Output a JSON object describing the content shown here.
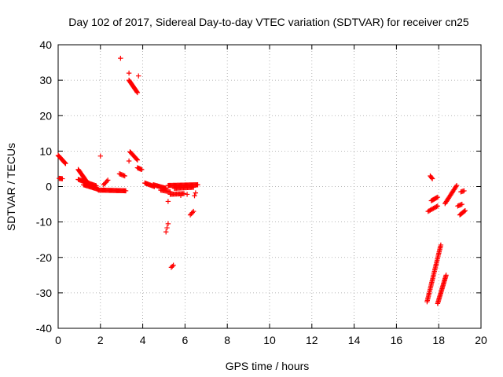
{
  "chart_data": {
    "type": "scatter",
    "title": "Day 102 of 2017, Sidereal Day-to-day VTEC variation (SDTVAR) for receiver cn25",
    "xlabel": "GPS time / hours",
    "ylabel": "SDTVAR / TECUs",
    "xlim": [
      0,
      20
    ],
    "ylim": [
      -40,
      40
    ],
    "xticks": [
      0,
      2,
      4,
      6,
      8,
      10,
      12,
      14,
      16,
      18,
      20
    ],
    "yticks": [
      -40,
      -30,
      -20,
      -10,
      0,
      10,
      20,
      30,
      40
    ],
    "grid": true,
    "marker": "+",
    "color": "#ff0000",
    "segments": [
      {
        "x0": 0.0,
        "y0": 8.8,
        "x1": 0.35,
        "y1": 6.5,
        "n": 14
      },
      {
        "x0": 0.05,
        "y0": 2.3,
        "x1": 0.2,
        "y1": 2.2,
        "n": 5
      },
      {
        "x0": 0.95,
        "y0": 4.8,
        "x1": 1.4,
        "y1": 1.0,
        "n": 16
      },
      {
        "x0": 0.95,
        "y0": 2.0,
        "x1": 1.8,
        "y1": 0.2,
        "n": 22
      },
      {
        "x0": 1.2,
        "y0": 0.5,
        "x1": 1.9,
        "y1": -0.8,
        "n": 18
      },
      {
        "x0": 1.9,
        "y0": -1.0,
        "x1": 3.2,
        "y1": -1.2,
        "n": 34
      },
      {
        "x0": 2.15,
        "y0": 0.5,
        "x1": 2.35,
        "y1": 1.8,
        "n": 5
      },
      {
        "x0": 2.9,
        "y0": 3.6,
        "x1": 3.15,
        "y1": 3.0,
        "n": 6
      },
      {
        "x0": 3.35,
        "y0": 30.0,
        "x1": 3.75,
        "y1": 26.5,
        "n": 16
      },
      {
        "x0": 3.4,
        "y0": 9.8,
        "x1": 3.75,
        "y1": 7.5,
        "n": 12
      },
      {
        "x0": 3.75,
        "y0": 5.3,
        "x1": 3.95,
        "y1": 4.8,
        "n": 6
      },
      {
        "x0": 4.1,
        "y0": 1.0,
        "x1": 4.55,
        "y1": 0.0,
        "n": 12
      },
      {
        "x0": 4.5,
        "y0": 0.5,
        "x1": 5.1,
        "y1": -0.5,
        "n": 16
      },
      {
        "x0": 4.85,
        "y0": -1.0,
        "x1": 5.3,
        "y1": -1.5,
        "n": 10
      },
      {
        "x0": 5.2,
        "y0": 0.3,
        "x1": 6.6,
        "y1": 0.5,
        "n": 36
      },
      {
        "x0": 5.5,
        "y0": -0.5,
        "x1": 6.4,
        "y1": -0.2,
        "n": 20
      },
      {
        "x0": 5.3,
        "y0": -2.2,
        "x1": 5.95,
        "y1": -2.0,
        "n": 14
      },
      {
        "x0": 6.25,
        "y0": -8.0,
        "x1": 6.4,
        "y1": -7.0,
        "n": 4
      },
      {
        "x0": 5.35,
        "y0": -22.8,
        "x1": 5.45,
        "y1": -22.2,
        "n": 3
      },
      {
        "x0": 5.1,
        "y0": -12.8,
        "x1": 5.2,
        "y1": -10.5,
        "n": 3
      },
      {
        "x0": 17.45,
        "y0": -32.5,
        "x1": 18.1,
        "y1": -16.5,
        "n": 42
      },
      {
        "x0": 17.95,
        "y0": -33.0,
        "x1": 18.35,
        "y1": -25.0,
        "n": 26
      },
      {
        "x0": 17.5,
        "y0": -7.0,
        "x1": 17.95,
        "y1": -5.5,
        "n": 10
      },
      {
        "x0": 17.65,
        "y0": -4.0,
        "x1": 17.95,
        "y1": -3.0,
        "n": 8
      },
      {
        "x0": 17.6,
        "y0": 3.0,
        "x1": 17.7,
        "y1": 2.2,
        "n": 4
      },
      {
        "x0": 18.3,
        "y0": -4.8,
        "x1": 18.85,
        "y1": 0.3,
        "n": 18
      },
      {
        "x0": 18.9,
        "y0": -5.5,
        "x1": 19.1,
        "y1": -5.0,
        "n": 5
      },
      {
        "x0": 19.0,
        "y0": -8.0,
        "x1": 19.25,
        "y1": -6.8,
        "n": 8
      },
      {
        "x0": 19.05,
        "y0": -1.5,
        "x1": 19.2,
        "y1": -1.2,
        "n": 4
      }
    ],
    "isolated_points": [
      [
        2.95,
        36.2
      ],
      [
        3.35,
        32.0
      ],
      [
        3.8,
        31.2
      ],
      [
        2.0,
        8.6
      ],
      [
        3.35,
        7.2
      ],
      [
        5.2,
        -4.2
      ],
      [
        6.45,
        -2.6
      ],
      [
        6.5,
        -1.8
      ],
      [
        5.8,
        -2.5
      ],
      [
        6.1,
        -2.2
      ]
    ]
  }
}
